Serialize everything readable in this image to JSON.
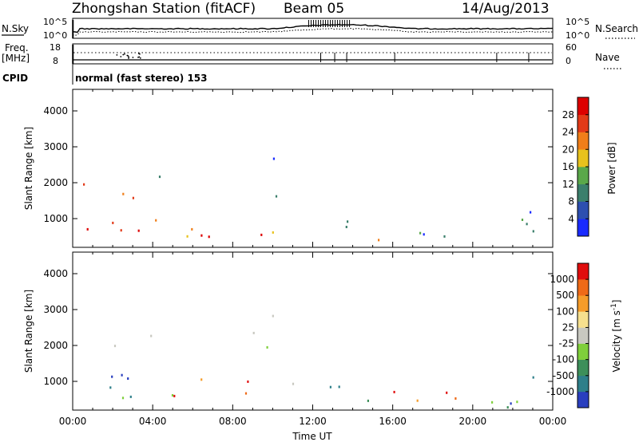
{
  "header": {
    "station": "Zhongshan Station (fitACF)",
    "beam": "Beam 05",
    "date": "14/Aug/2013"
  },
  "strip_noise": {
    "left_label": "N.Sky",
    "left_ticks": [
      "10^5",
      "10^0"
    ],
    "right_ticks": [
      "10^5",
      "10^0"
    ],
    "right_label": "N.Search"
  },
  "strip_freq": {
    "left_label_1": "Freq.",
    "left_label_2": "[MHz]",
    "left_ticks": [
      "18",
      "8"
    ],
    "right_ticks": [
      "60",
      "0"
    ],
    "right_label": "Nave",
    "cpid_label": "CPID",
    "mode": "normal (fast stereo) 153"
  },
  "chart_data": [
    {
      "type": "heatmap",
      "panel": "power",
      "ylabel": "Slant Range [km]",
      "xlabel": "",
      "yticks": [
        "1000",
        "2000",
        "3000",
        "4000"
      ],
      "ylim": [
        200,
        4600
      ],
      "xlim": [
        0,
        24
      ],
      "colorbar_label": "Power [dB]",
      "colorbar_ticks": [
        "4",
        "8",
        "12",
        "16",
        "20",
        "24",
        "28"
      ],
      "colorbar_colors": [
        "#1a2bff",
        "#2d4fb0",
        "#3b7f6c",
        "#5aa84a",
        "#e8c21c",
        "#f07e19",
        "#e23a18",
        "#dd0000"
      ],
      "scatter_regions": [
        {
          "t0": 0.0,
          "t1": 3.0,
          "r0": 350,
          "r1": 2200,
          "level": 0.75
        },
        {
          "t0": 3.0,
          "t1": 4.5,
          "r0": 1650,
          "r1": 2300,
          "level": 0.45
        },
        {
          "t0": 2.0,
          "t1": 6.5,
          "r0": 400,
          "r1": 1200,
          "level": 0.7
        },
        {
          "t0": 5.5,
          "t1": 9.5,
          "r0": 300,
          "r1": 900,
          "level": 0.95
        },
        {
          "t0": 8.5,
          "t1": 10.5,
          "r0": 1500,
          "r1": 2000,
          "level": 0.35
        },
        {
          "t0": 9.0,
          "t1": 10.2,
          "r0": 2000,
          "r1": 3000,
          "level": 0.15
        },
        {
          "t0": 8.5,
          "t1": 11.0,
          "r0": 600,
          "r1": 1100,
          "level": 0.45
        },
        {
          "t0": 12.5,
          "t1": 15.5,
          "r0": 600,
          "r1": 1100,
          "level": 0.4
        },
        {
          "t0": 14.5,
          "t1": 17.5,
          "r0": 350,
          "r1": 1000,
          "level": 0.6
        },
        {
          "t0": 17.5,
          "t1": 20.0,
          "r0": 350,
          "r1": 1200,
          "level": 0.2
        },
        {
          "t0": 21.0,
          "t1": 24.0,
          "r0": 300,
          "r1": 1600,
          "level": 0.3
        }
      ]
    },
    {
      "type": "heatmap",
      "panel": "velocity",
      "ylabel": "Slant Range [km]",
      "xlabel": "Time UT",
      "xticks": [
        "00:00",
        "04:00",
        "08:00",
        "12:00",
        "16:00",
        "20:00",
        "00:00"
      ],
      "yticks": [
        "1000",
        "2000",
        "3000",
        "4000"
      ],
      "ylim": [
        200,
        4600
      ],
      "xlim": [
        0,
        24
      ],
      "colorbar_label": "Velocity [m s^-1]",
      "colorbar_ticks": [
        "1000",
        "500",
        "100",
        "25",
        "-25",
        "-100",
        "-500",
        "-1000"
      ],
      "colorbar_colors": [
        "#2a3fbf",
        "#2e7f8a",
        "#3d8f5a",
        "#7fcf3b",
        "#c8c8c0",
        "#f6e08e",
        "#f59c2a",
        "#ef6a17",
        "#e00d0d"
      ],
      "scatter_regions": [
        {
          "t0": 0.0,
          "t1": 3.0,
          "r0": 350,
          "r1": 1600,
          "level": 0.15
        },
        {
          "t0": 1.5,
          "t1": 4.5,
          "r0": 1650,
          "r1": 2300,
          "level": 0.45
        },
        {
          "t0": 1.5,
          "t1": 5.5,
          "r0": 300,
          "r1": 900,
          "level": 0.3
        },
        {
          "t0": 5.0,
          "t1": 9.5,
          "r0": 350,
          "r1": 1200,
          "level": 0.82
        },
        {
          "t0": 8.5,
          "t1": 10.5,
          "r0": 1550,
          "r1": 2050,
          "level": 0.45
        },
        {
          "t0": 9.0,
          "t1": 10.5,
          "r0": 2100,
          "r1": 3200,
          "level": 0.45
        },
        {
          "t0": 10.0,
          "t1": 12.0,
          "r0": 700,
          "r1": 1100,
          "level": 0.35
        },
        {
          "t0": 12.0,
          "t1": 16.0,
          "r0": 400,
          "r1": 1100,
          "level": 0.2
        },
        {
          "t0": 15.5,
          "t1": 20.0,
          "r0": 300,
          "r1": 1100,
          "level": 0.8
        },
        {
          "t0": 20.5,
          "t1": 24.0,
          "r0": 300,
          "r1": 1500,
          "level": 0.25
        }
      ]
    }
  ]
}
